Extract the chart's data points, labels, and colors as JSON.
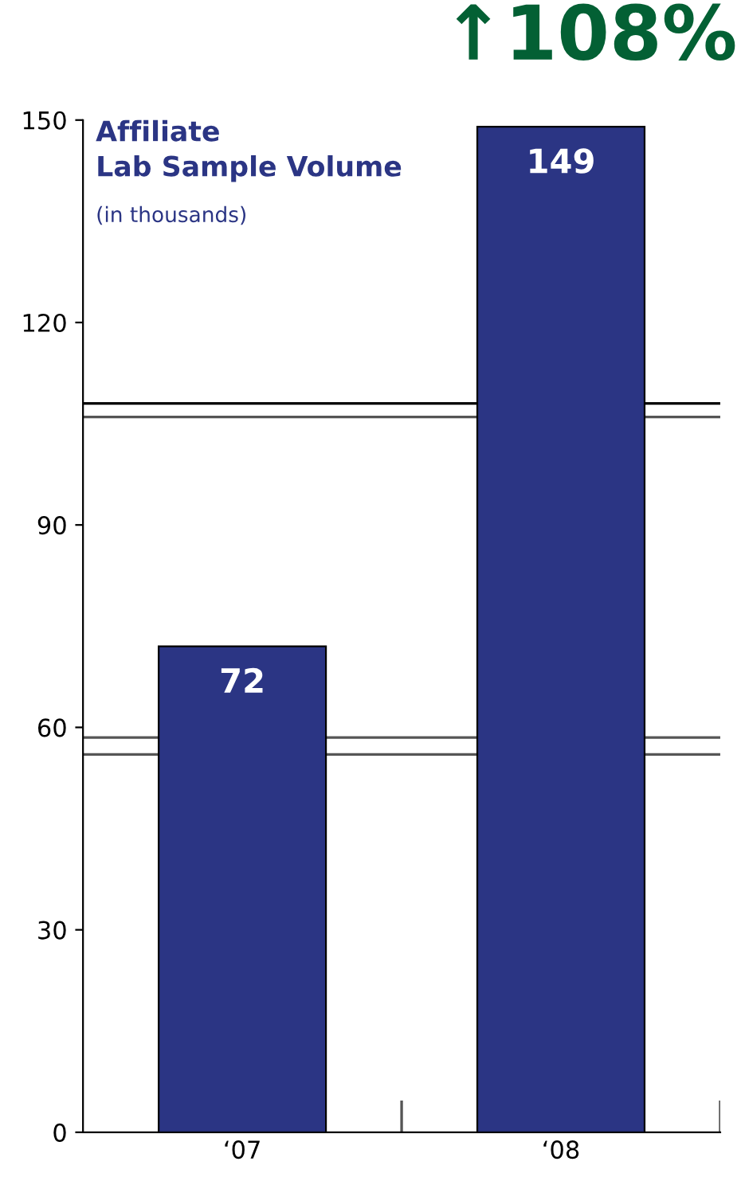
{
  "chart_data": {
    "type": "bar",
    "title": "Affiliate\nLab Sample Volume",
    "subtitle": "(in thousands)",
    "categories": [
      "‘07",
      "‘08"
    ],
    "values": [
      72,
      149
    ],
    "color": "#2b3584",
    "ylim": [
      0,
      150
    ],
    "yticks": [
      0,
      30,
      60,
      90,
      120,
      150
    ],
    "grid": false,
    "data_labels": true,
    "ref_lines": [
      {
        "axis": "y",
        "value": 108,
        "color": "#000000"
      },
      {
        "axis": "y",
        "value": 106,
        "color": "#555555"
      },
      {
        "axis": "y",
        "value": 58.5,
        "color": "#555555"
      },
      {
        "axis": "y",
        "value": 56,
        "color": "#555555"
      }
    ],
    "annotations": [
      "↑108%"
    ]
  }
}
